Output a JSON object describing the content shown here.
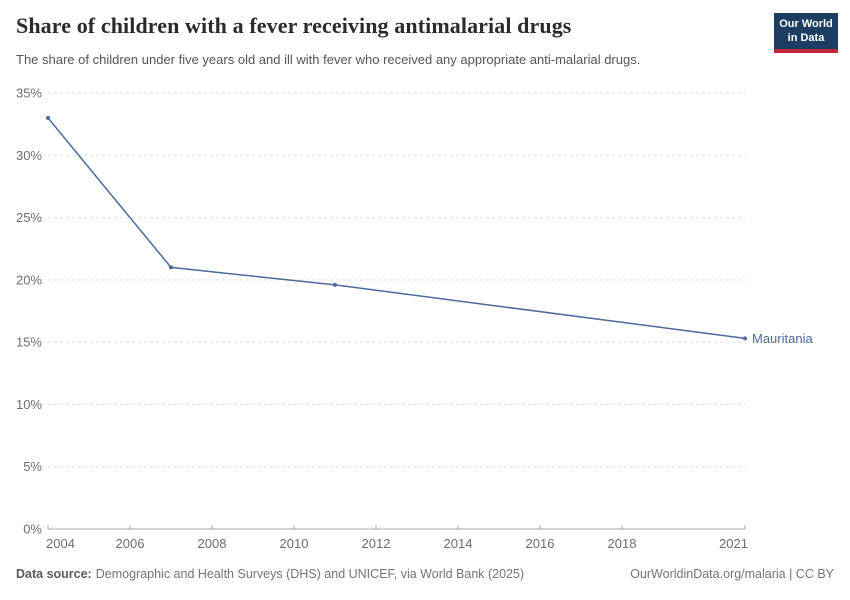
{
  "chart_data": {
    "type": "line",
    "title": "Share of children with a fever receiving antimalarial drugs",
    "subtitle": "The share of children under five years old and ill with fever who received any appropriate anti-malarial drugs.",
    "xlabel": "",
    "ylabel": "",
    "xlim": [
      2004,
      2021
    ],
    "ylim": [
      0,
      35
    ],
    "xticks": [
      2004,
      2006,
      2008,
      2010,
      2012,
      2014,
      2016,
      2018,
      2021
    ],
    "yticks": [
      0,
      5,
      10,
      15,
      20,
      25,
      30,
      35
    ],
    "ytick_suffix": "%",
    "grid": "horizontal-dashed",
    "legend_position": "end-of-line-label",
    "series": [
      {
        "name": "Mauritania",
        "end_label": "Mauritania",
        "color": "#4C6A9C",
        "points": [
          [
            2004,
            33
          ],
          [
            2007,
            21
          ],
          [
            2011,
            19.6
          ],
          [
            2021,
            15.3
          ]
        ]
      }
    ]
  },
  "logo": {
    "line1": "Our World",
    "line2": "in Data"
  },
  "footer": {
    "datasource_label": "Data source:",
    "datasource_text": "Demographic and Health Surveys (DHS) and UNICEF, via World Bank (2025)",
    "credit": "OurWorldinData.org/malaria | CC BY"
  },
  "colors": {
    "line": "#4C6A9C",
    "grid": "#dddddd",
    "axis": "#a7a7a7",
    "tick_label": "#6e6e6e",
    "title": "#2b2b2b",
    "subtitle": "#555555",
    "footer": "#757575",
    "logo_bg": "#1d3d63",
    "logo_bar": "#c0273d"
  }
}
